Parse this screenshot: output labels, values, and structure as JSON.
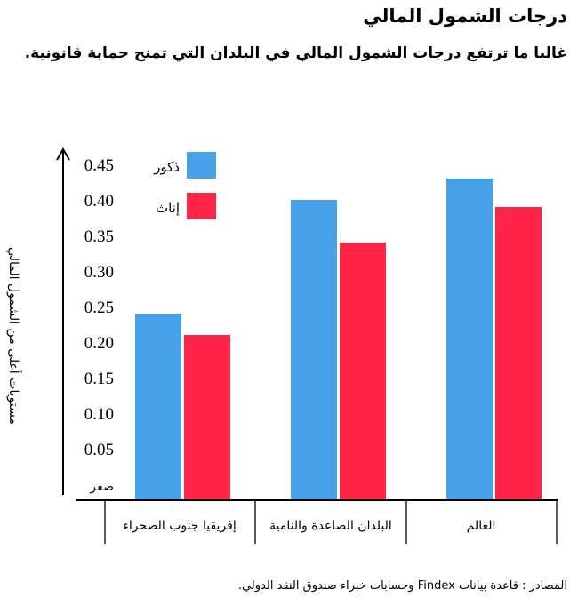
{
  "title": "درجات الشمول المالي",
  "subtitle": "غالبا ما ترتفع درجات الشمول المالي في البلدان التي تمنح حماية قانونية.",
  "source": "المصادر : قاعدة بيانات Findex وحسابات خبراء صندوق النقد الدولي.",
  "colors": {
    "male": "#46a1e6",
    "female": "#ff2547",
    "axis": "#000000"
  },
  "chart_data": {
    "type": "bar",
    "title": "درجات الشمول المالي",
    "subtitle": "غالبا ما ترتفع درجات الشمول المالي في البلدان التي تمنح حماية قانونية.",
    "xlabel": "",
    "ylabel": "مستويات أعلى من الشمول المالي",
    "ylim": [
      0,
      0.45
    ],
    "yticks": [
      "صفر",
      "0.05",
      "0.10",
      "0.15",
      "0.20",
      "0.25",
      "0.30",
      "0.35",
      "0.40",
      "0.45"
    ],
    "grid": false,
    "legend_position": "top-left",
    "categories": [
      "إفريقيا جنوب الصحراء",
      "البلدان الصاعدة والنامية",
      "العالم"
    ],
    "series": [
      {
        "name": "ذكور",
        "color": "#46a1e6",
        "values": [
          0.24,
          0.4,
          0.43
        ]
      },
      {
        "name": "إناث",
        "color": "#ff2547",
        "values": [
          0.21,
          0.34,
          0.39
        ]
      }
    ]
  }
}
